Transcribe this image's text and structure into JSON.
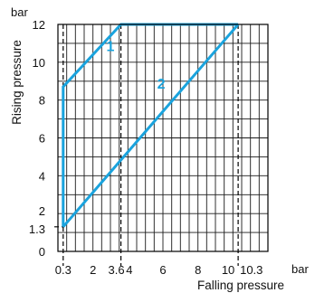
{
  "chart_data": {
    "type": "line",
    "xlabel": "Falling pressure",
    "ylabel": "Rising pressure",
    "x_unit": "bar",
    "y_unit": "bar",
    "xlim": [
      0,
      12
    ],
    "ylim": [
      0,
      12
    ],
    "grid": true,
    "x_ticks": [
      {
        "value": 0.3,
        "label": "0.3"
      },
      {
        "value": 2,
        "label": "2"
      },
      {
        "value": 3.6,
        "label": "3.6"
      },
      {
        "value": 4,
        "label": "4"
      },
      {
        "value": 6,
        "label": "6"
      },
      {
        "value": 8,
        "label": "8"
      },
      {
        "value": 10,
        "label": "10"
      },
      {
        "value": 10.3,
        "label": "10.3"
      }
    ],
    "y_ticks": [
      {
        "value": 0,
        "label": "0"
      },
      {
        "value": 1.3,
        "label": "1.3"
      },
      {
        "value": 2,
        "label": "2"
      },
      {
        "value": 4,
        "label": "4"
      },
      {
        "value": 6,
        "label": "6"
      },
      {
        "value": 8,
        "label": "8"
      },
      {
        "value": 10,
        "label": "10"
      },
      {
        "value": 12,
        "label": "12"
      }
    ],
    "reference_lines": [
      {
        "axis": "x",
        "value": 0.3
      },
      {
        "axis": "x",
        "value": 3.6
      },
      {
        "axis": "x",
        "value": 10.3
      },
      {
        "axis": "y",
        "value": 1.3
      }
    ],
    "series": [
      {
        "name": "1",
        "x": [
          0.3,
          0.3,
          3.6,
          10.3
        ],
        "y": [
          1.3,
          8.7,
          12,
          12
        ],
        "label_at": [
          3.0,
          10.6
        ]
      },
      {
        "name": "2",
        "x": [
          0.3,
          0.3,
          10.3
        ],
        "y": [
          1.3,
          1.3,
          12
        ],
        "label_at": [
          5.9,
          8.6
        ]
      }
    ],
    "colors": {
      "series": "#1aa3dd",
      "grid": "#1a1a1a",
      "text": "#111111"
    }
  }
}
